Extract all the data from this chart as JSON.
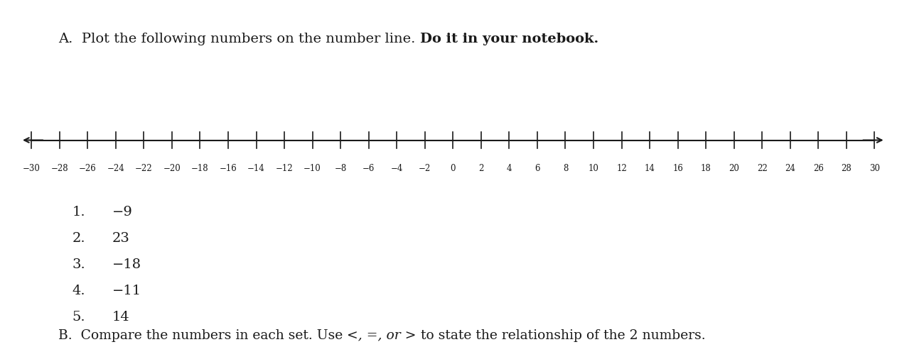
{
  "title_normal": "A.  Plot the following numbers on the number line. ",
  "title_bold": "Do it in your notebook.",
  "number_line_min": -30,
  "number_line_max": 30,
  "label_values": [
    -30,
    -28,
    -26,
    -24,
    -22,
    -20,
    -18,
    -16,
    -14,
    -12,
    -10,
    -8,
    -6,
    -4,
    -2,
    0,
    2,
    4,
    6,
    8,
    10,
    12,
    14,
    16,
    18,
    20,
    22,
    24,
    26,
    28,
    30
  ],
  "items": [
    {
      "num": "1.",
      "value": "−9"
    },
    {
      "num": "2.",
      "value": "23"
    },
    {
      "num": "3.",
      "value": "−18"
    },
    {
      "num": "4.",
      "value": "−11"
    },
    {
      "num": "5.",
      "value": "14"
    }
  ],
  "section_B_normal1": "B.  Compare the numbers in each set. Use ",
  "section_B_italic": "<, =, or >",
  "section_B_normal2": " to state the relationship of the 2 numbers.",
  "bg_color": "#ffffff",
  "text_color": "#1a1a1a",
  "line_color": "#1a1a1a",
  "font_size_title": 14,
  "font_size_labels": 8.5,
  "font_size_items": 14,
  "font_size_B": 13.5
}
